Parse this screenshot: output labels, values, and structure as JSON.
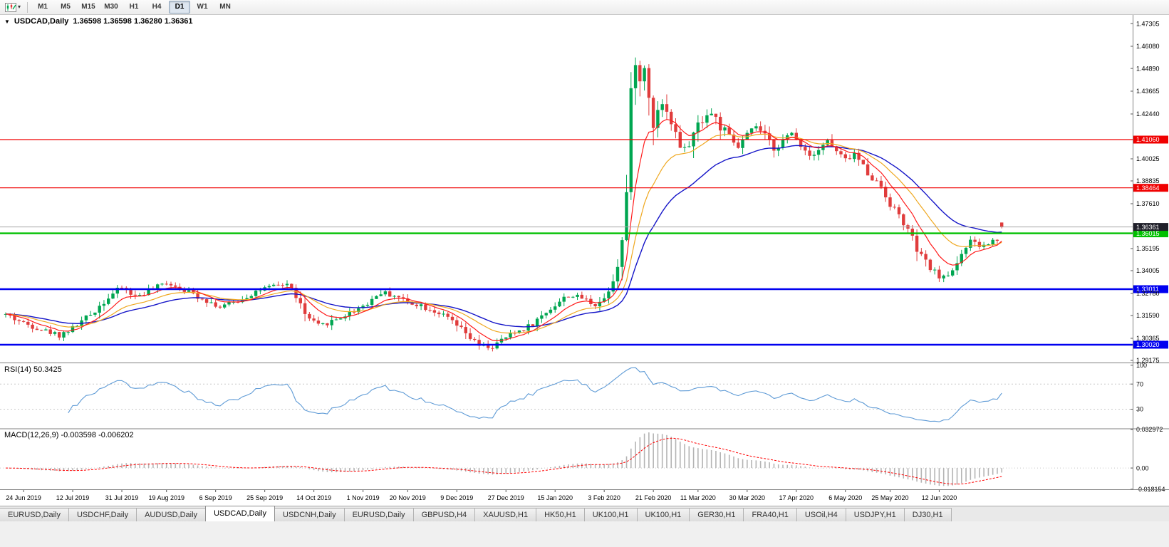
{
  "toolbar": {
    "timeframes": [
      "M1",
      "M5",
      "M15",
      "M30",
      "H1",
      "H4",
      "D1",
      "W1",
      "MN"
    ],
    "active_timeframe": "D1"
  },
  "icons": {
    "collapse_triangle": "▼",
    "dropdown_arrow": "▾"
  },
  "chart": {
    "title_symbol": "USDCAD,Daily",
    "ohlc": "1.36598 1.36598 1.36280 1.36361",
    "price_axis": {
      "ticks": [
        "1.47305",
        "1.46080",
        "1.44890",
        "1.43665",
        "1.42440",
        "1.40025",
        "1.38835",
        "1.37610",
        "1.35195",
        "1.34005",
        "1.32780",
        "1.31590",
        "1.30365",
        "1.29175"
      ],
      "current_price": "1.36361",
      "current_price_value": 1.36361,
      "y_range": [
        1.291,
        1.4773
      ]
    },
    "hlines": [
      {
        "price": 1.4106,
        "label": "1.41060",
        "color": "#f00000",
        "width": 1.2,
        "name": "resistance-line-1"
      },
      {
        "price": 1.38464,
        "label": "1.38464",
        "color": "#f00000",
        "width": 1.2,
        "name": "resistance-line-2"
      },
      {
        "price": 1.36015,
        "label": "1.36015",
        "color": "#00c000",
        "width": 2.4,
        "name": "support-line-green"
      },
      {
        "price": 1.33011,
        "label": "1.33011",
        "color": "#0000f0",
        "width": 2.4,
        "name": "support-line-blue-1"
      },
      {
        "price": 1.3002,
        "label": "1.30020",
        "color": "#0000f0",
        "width": 2.4,
        "name": "support-line-blue-2"
      }
    ]
  },
  "rsi": {
    "label": "RSI(14) 50.3425",
    "ticks": [
      "100",
      "70",
      "30"
    ],
    "tick_values": [
      100,
      70,
      30
    ],
    "levels": [
      70,
      30
    ]
  },
  "macd": {
    "label": "MACD(12,26,9) -0.003598 -0.006202",
    "ticks": [
      "0.032972",
      "0.00",
      "-0.018154"
    ],
    "tick_values": [
      0.032972,
      0.0,
      -0.018154
    ]
  },
  "date_axis": {
    "ticks": [
      {
        "i": 4,
        "label": "24 Jun 2019"
      },
      {
        "i": 15,
        "label": "12 Jul 2019"
      },
      {
        "i": 26,
        "label": "31 Jul 2019"
      },
      {
        "i": 36,
        "label": "19 Aug 2019"
      },
      {
        "i": 47,
        "label": "6 Sep 2019"
      },
      {
        "i": 58,
        "label": "25 Sep 2019"
      },
      {
        "i": 69,
        "label": "14 Oct 2019"
      },
      {
        "i": 80,
        "label": "1 Nov 2019"
      },
      {
        "i": 90,
        "label": "20 Nov 2019"
      },
      {
        "i": 101,
        "label": "9 Dec 2019"
      },
      {
        "i": 112,
        "label": "27 Dec 2019"
      },
      {
        "i": 123,
        "label": "15 Jan 2020"
      },
      {
        "i": 134,
        "label": "3 Feb 2020"
      },
      {
        "i": 145,
        "label": "21 Feb 2020"
      },
      {
        "i": 155,
        "label": "11 Mar 2020"
      },
      {
        "i": 166,
        "label": "30 Mar 2020"
      },
      {
        "i": 177,
        "label": "17 Apr 2020"
      },
      {
        "i": 188,
        "label": "6 May 2020"
      },
      {
        "i": 198,
        "label": "25 May 2020"
      },
      {
        "i": 209,
        "label": "12 Jun 2020"
      }
    ]
  },
  "tabs": {
    "items": [
      "EURUSD,Daily",
      "USDCHF,Daily",
      "AUDUSD,Daily",
      "USDCAD,Daily",
      "USDCNH,Daily",
      "EURUSD,Daily",
      "GBPUSD,H4",
      "XAUUSD,H1",
      "HK50,H1",
      "UK100,H1",
      "UK100,H1",
      "GER30,H1",
      "FRA40,H1",
      "USOil,H4",
      "USDJPY,H1",
      "DJ30,H1"
    ],
    "active_index": 3
  },
  "chart_data": {
    "type": "candlestick",
    "symbol": "USDCAD",
    "timeframe": "Daily",
    "bar_count": 224,
    "seed": 42,
    "last_ohlc": [
      1.36598,
      1.36598,
      1.3628,
      1.36361
    ],
    "x_range_labels": [
      "24 Jun 2019",
      "12 Jun 2020"
    ],
    "y_range": [
      1.291,
      1.4773
    ],
    "anchors": [
      [
        0,
        1.3165
      ],
      [
        4,
        1.3118
      ],
      [
        8,
        1.3085
      ],
      [
        12,
        1.3055
      ],
      [
        15,
        1.309
      ],
      [
        19,
        1.3165
      ],
      [
        23,
        1.326
      ],
      [
        26,
        1.331
      ],
      [
        29,
        1.3262
      ],
      [
        33,
        1.33
      ],
      [
        36,
        1.3338
      ],
      [
        40,
        1.3298
      ],
      [
        44,
        1.3252
      ],
      [
        48,
        1.3205
      ],
      [
        52,
        1.3238
      ],
      [
        56,
        1.329
      ],
      [
        60,
        1.3315
      ],
      [
        63,
        1.333
      ],
      [
        65,
        1.3268
      ],
      [
        67,
        1.316
      ],
      [
        70,
        1.3098
      ],
      [
        73,
        1.3128
      ],
      [
        77,
        1.3172
      ],
      [
        81,
        1.3228
      ],
      [
        84,
        1.3285
      ],
      [
        87,
        1.3268
      ],
      [
        90,
        1.3232
      ],
      [
        93,
        1.3215
      ],
      [
        97,
        1.3172
      ],
      [
        100,
        1.3125
      ],
      [
        103,
        1.3058
      ],
      [
        106,
        1.2995
      ],
      [
        109,
        1.2988
      ],
      [
        112,
        1.3042
      ],
      [
        115,
        1.3078
      ],
      [
        118,
        1.3112
      ],
      [
        122,
        1.32
      ],
      [
        126,
        1.3268
      ],
      [
        129,
        1.3255
      ],
      [
        132,
        1.3218
      ],
      [
        134,
        1.3252
      ],
      [
        136,
        1.336
      ],
      [
        137,
        1.3448
      ],
      [
        138,
        1.356
      ],
      [
        139,
        1.382
      ],
      [
        140,
        1.43
      ],
      [
        141,
        1.4575
      ],
      [
        142,
        1.439
      ],
      [
        143,
        1.4495
      ],
      [
        144,
        1.433
      ],
      [
        145,
        1.4215
      ],
      [
        146,
        1.43
      ],
      [
        148,
        1.4278
      ],
      [
        150,
        1.4125
      ],
      [
        152,
        1.4042
      ],
      [
        154,
        1.413
      ],
      [
        156,
        1.4228
      ],
      [
        158,
        1.4248
      ],
      [
        160,
        1.418
      ],
      [
        162,
        1.4112
      ],
      [
        164,
        1.4062
      ],
      [
        166,
        1.413
      ],
      [
        168,
        1.4178
      ],
      [
        170,
        1.412
      ],
      [
        172,
        1.4062
      ],
      [
        174,
        1.41
      ],
      [
        176,
        1.4138
      ],
      [
        178,
        1.408
      ],
      [
        180,
        1.4022
      ],
      [
        182,
        1.406
      ],
      [
        184,
        1.4098
      ],
      [
        186,
        1.404
      ],
      [
        188,
        1.3992
      ],
      [
        190,
        1.4028
      ],
      [
        192,
        1.3962
      ],
      [
        194,
        1.39
      ],
      [
        196,
        1.3855
      ],
      [
        198,
        1.3762
      ],
      [
        200,
        1.37
      ],
      [
        202,
        1.3618
      ],
      [
        204,
        1.3512
      ],
      [
        206,
        1.344
      ],
      [
        208,
        1.3392
      ],
      [
        210,
        1.3362
      ],
      [
        212,
        1.3402
      ],
      [
        214,
        1.35
      ],
      [
        216,
        1.3552
      ],
      [
        218,
        1.353
      ],
      [
        220,
        1.3545
      ],
      [
        222,
        1.3575
      ],
      [
        223,
        1.364
      ]
    ],
    "ma": {
      "fast": 8,
      "mid": 17,
      "slow": 30
    },
    "indicators": [
      "RSI(14)",
      "MACD(12,26,9)"
    ],
    "colors": {
      "up": "#00a651",
      "down": "#e03c3c",
      "ma_fast": "#ff1a1a",
      "ma_mid": "#efa820",
      "ma_slow": "#1515c8",
      "rsi_line": "#5f9bd6",
      "macd_hist": "#b4b4b4",
      "macd_signal": "#ff0000",
      "price_line": "#a8a8a8",
      "price_badge": "#20202a",
      "level_dash": "#c8c8c8",
      "axis_line": "#808080"
    }
  }
}
